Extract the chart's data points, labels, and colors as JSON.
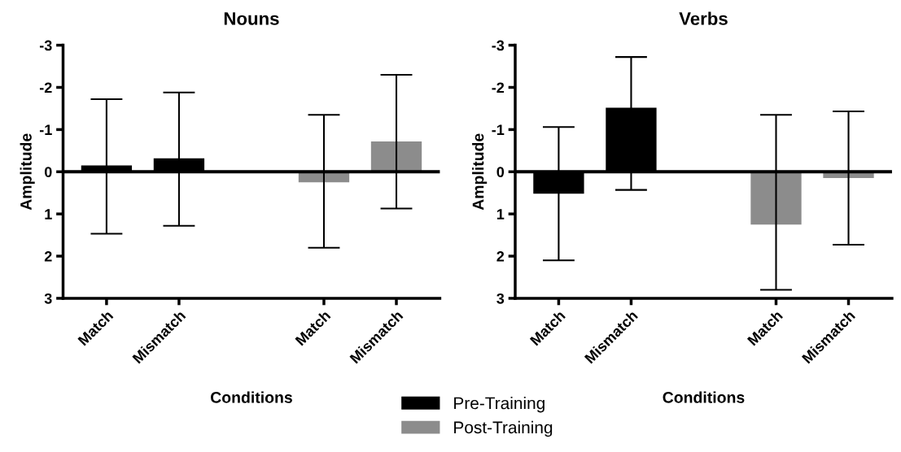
{
  "chart_data": [
    {
      "type": "bar",
      "title": "Nouns",
      "xlabel": "Conditions",
      "ylabel": "Amplitude",
      "categories": [
        "Match",
        "Mismatch",
        null,
        "Match",
        "Mismatch"
      ],
      "ylim": [
        3,
        -3
      ],
      "yticks": [
        -3,
        -2,
        -1,
        0,
        1,
        2,
        3
      ],
      "grid": false,
      "legend": "bottom",
      "ref_lines": [
        {
          "axis": "y",
          "value": 0
        }
      ],
      "series": [
        {
          "name": "Pre-Training",
          "color": "#000000",
          "values": [
            -0.15,
            -0.32,
            null,
            null,
            null
          ],
          "errors": [
            [
              -1.72,
              1.47
            ],
            [
              -1.88,
              1.28
            ],
            null,
            null,
            null
          ]
        },
        {
          "name": "Post-Training",
          "color": "#8c8c8c",
          "values": [
            null,
            null,
            null,
            0.25,
            -0.72
          ],
          "errors": [
            null,
            null,
            null,
            [
              -1.35,
              1.8
            ],
            [
              -2.3,
              0.87
            ]
          ]
        }
      ]
    },
    {
      "type": "bar",
      "title": "Verbs",
      "xlabel": "Conditions",
      "ylabel": "Amplitude",
      "categories": [
        "Match",
        "Mismatch",
        null,
        "Match",
        "Mismatch"
      ],
      "ylim": [
        3,
        -3
      ],
      "yticks": [
        -3,
        -2,
        -1,
        0,
        1,
        2,
        3
      ],
      "grid": false,
      "legend": "bottom",
      "ref_lines": [
        {
          "axis": "y",
          "value": 0
        }
      ],
      "series": [
        {
          "name": "Pre-Training",
          "color": "#000000",
          "values": [
            0.52,
            -1.52,
            null,
            null,
            null
          ],
          "errors": [
            [
              -1.06,
              2.1
            ],
            [
              -2.72,
              0.43
            ],
            null,
            null,
            null
          ]
        },
        {
          "name": "Post-Training",
          "color": "#8c8c8c",
          "values": [
            null,
            null,
            null,
            1.25,
            0.15
          ],
          "errors": [
            null,
            null,
            null,
            [
              -1.35,
              2.8
            ],
            [
              -1.43,
              1.73
            ]
          ]
        }
      ]
    }
  ]
}
